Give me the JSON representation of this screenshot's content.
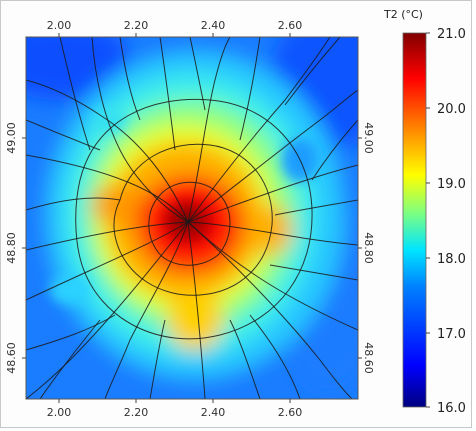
{
  "map": {
    "colorbar": {
      "title": "T2 (°C)",
      "min": 16.0,
      "max": 21.0,
      "ticks": [
        "21.0",
        "20.0",
        "19.0",
        "18.0",
        "17.0",
        "16.0"
      ],
      "colors": [
        "#00007f",
        "#0000ff",
        "#007fff",
        "#00ffff",
        "#7fff7f",
        "#ffff00",
        "#ff7f00",
        "#ff0000",
        "#7f0000"
      ]
    },
    "lon_ticks_top": [
      "2.00",
      "2.20",
      "2.40",
      "2.60"
    ],
    "lon_ticks_bottom": [
      "2.00",
      "2.20",
      "2.40",
      "2.60"
    ],
    "lat_ticks_left": [
      "49.00",
      "48.80",
      "48.60"
    ],
    "lat_ticks_right": [
      "49.00",
      "48.80",
      "48.60"
    ]
  }
}
